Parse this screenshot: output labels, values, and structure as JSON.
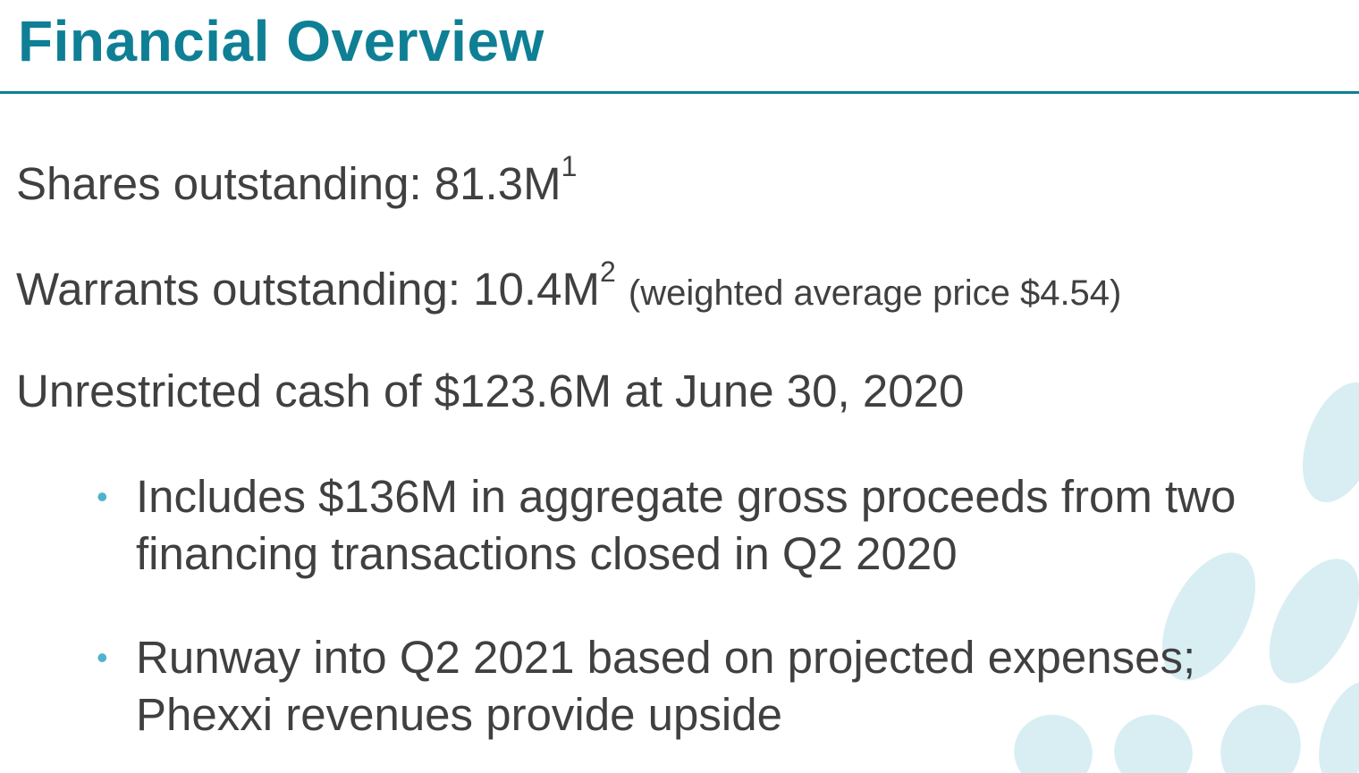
{
  "title": "Financial Overview",
  "colors": {
    "accent": "#0E7F95",
    "text": "#404040",
    "bullet": "#4FB3CC",
    "decor": "#D8EEF3"
  },
  "items": {
    "shares": {
      "text": "Shares outstanding: 81.3M",
      "footnote": "1"
    },
    "warrants": {
      "text": "Warrants outstanding: 10.4M",
      "footnote": "2",
      "note": "(weighted average price $4.54)"
    },
    "cash": {
      "text": "Unrestricted cash of $123.6M at June 30, 2020"
    }
  },
  "bullets": [
    {
      "line1": "Includes $136M in aggregate gross proceeds from two",
      "line2": "financing transactions closed in Q2 2020"
    },
    {
      "line1": "Runway into Q2 2021 based on projected expenses;",
      "line2": "Phexxi revenues provide upside"
    }
  ],
  "bullet_glyph": "•"
}
